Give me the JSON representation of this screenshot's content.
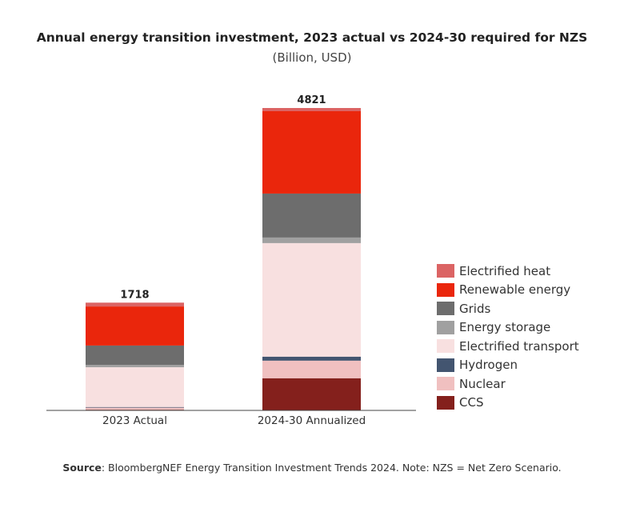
{
  "chart_data": {
    "type": "bar",
    "stacked": true,
    "title": "Annual energy transition investment, 2023 actual vs 2024-30 required for NZS",
    "subtitle": "(Billion, USD)",
    "categories": [
      "2023 Actual",
      "2024-30 Annualized"
    ],
    "totals": [
      1718,
      4821
    ],
    "ylim": [
      0,
      4821
    ],
    "grid": false,
    "legend_position": "right",
    "series": [
      {
        "name": "CCS",
        "color": "#84201c",
        "values": [
          11,
          513
        ]
      },
      {
        "name": "Nuclear",
        "color": "#f0c0c0",
        "values": [
          33,
          280
        ]
      },
      {
        "name": "Hydrogen",
        "color": "#435570",
        "values": [
          10,
          64
        ]
      },
      {
        "name": "Electrified transport",
        "color": "#f8e0e0",
        "values": [
          634,
          1810
        ]
      },
      {
        "name": "Energy storage",
        "color": "#a0a0a0",
        "values": [
          36,
          89
        ]
      },
      {
        "name": "Grids",
        "color": "#6d6d6d",
        "values": [
          310,
          701
        ]
      },
      {
        "name": "Renewable energy",
        "color": "#ea260c",
        "values": [
          623,
          1313
        ]
      },
      {
        "name": "Electrified heat",
        "color": "#db6464",
        "values": [
          61,
          51
        ]
      }
    ],
    "legend_order": [
      "Electrified heat",
      "Renewable energy",
      "Grids",
      "Energy storage",
      "Electrified transport",
      "Hydrogen",
      "Nuclear",
      "CCS"
    ]
  },
  "source": {
    "label": "Source",
    "text": ": BloombergNEF Energy Transition Investment Trends 2024. Note: NZS = Net Zero Scenario."
  }
}
